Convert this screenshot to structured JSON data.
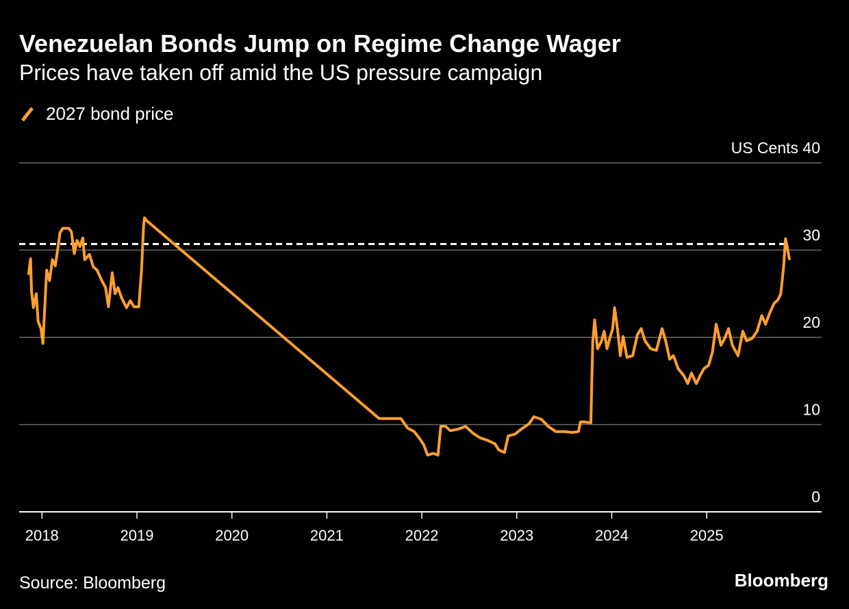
{
  "chart_data": {
    "type": "line",
    "title": "Venezuelan Bonds Jump on Regime Change Wager",
    "subtitle": "Prices have taken off amid the US pressure campaign",
    "source": "Source: Bloomberg",
    "credit": "Bloomberg",
    "xlim": [
      2017.76,
      2026.21
    ],
    "xticks": [
      2018,
      2019,
      2020,
      2021,
      2022,
      2023,
      2024,
      2025
    ],
    "ylim": [
      0,
      40
    ],
    "yticks": [
      0,
      10,
      20,
      30,
      {
        "value": 40,
        "label": "US Cents 40"
      }
    ],
    "grid": true,
    "reference_line": 30.7,
    "reference_color": "#ffffff",
    "x": [
      2017.86,
      2017.88,
      2017.89,
      2017.91,
      2017.94,
      2017.96,
      2017.99,
      2018.01,
      2018.04,
      2018.05,
      2018.08,
      2018.11,
      2018.14,
      2018.17,
      2018.19,
      2018.22,
      2018.28,
      2018.31,
      2018.34,
      2018.37,
      2018.4,
      2018.43,
      2018.45,
      2018.5,
      2018.54,
      2018.58,
      2018.63,
      2018.67,
      2018.7,
      2018.74,
      2018.77,
      2018.8,
      2018.84,
      2018.89,
      2018.93,
      2018.97,
      2019.02,
      2019.05,
      2019.07,
      2019.08,
      2019.1,
      2021.55,
      2021.78,
      2021.85,
      2021.92,
      2021.97,
      2022.02,
      2022.06,
      2022.12,
      2022.17,
      2022.2,
      2022.25,
      2022.3,
      2022.39,
      2022.46,
      2022.54,
      2022.61,
      2022.69,
      2022.77,
      2022.81,
      2022.87,
      2022.91,
      2022.98,
      2023.05,
      2023.13,
      2023.18,
      2023.26,
      2023.33,
      2023.41,
      2023.5,
      2023.59,
      2023.65,
      2023.67,
      2023.72,
      2023.78,
      2023.8,
      2023.82,
      2023.85,
      2023.89,
      2023.92,
      2023.95,
      2023.98,
      2024.01,
      2024.03,
      2024.06,
      2024.09,
      2024.12,
      2024.16,
      2024.22,
      2024.27,
      2024.31,
      2024.35,
      2024.41,
      2024.47,
      2024.53,
      2024.57,
      2024.61,
      2024.65,
      2024.7,
      2024.76,
      2024.8,
      2024.84,
      2024.89,
      2024.93,
      2024.97,
      2025.02,
      2025.06,
      2025.1,
      2025.15,
      2025.19,
      2025.23,
      2025.27,
      2025.33,
      2025.38,
      2025.42,
      2025.48,
      2025.53,
      2025.58,
      2025.62,
      2025.66,
      2025.71,
      2025.75,
      2025.78,
      2025.81,
      2025.83,
      2025.85,
      2025.87
    ],
    "series": [
      {
        "name": "2027 bond price",
        "color": "#ff9f2e",
        "values": [
          27.3,
          29,
          25.3,
          23.4,
          25,
          21.8,
          21,
          19.3,
          25.7,
          27.7,
          26.5,
          28.9,
          28.2,
          30.4,
          32,
          32.5,
          32.5,
          32.1,
          29.6,
          31.1,
          30.4,
          31.4,
          28.9,
          29.5,
          28.1,
          27.7,
          26.5,
          25.7,
          23.5,
          27.4,
          25,
          25.7,
          24.5,
          23.4,
          24.2,
          23.5,
          23.5,
          28,
          32.8,
          33.7,
          33.4,
          10.7,
          10.7,
          9.6,
          9.2,
          8.5,
          7.7,
          6.5,
          6.7,
          6.5,
          9.8,
          9.8,
          9.3,
          9.5,
          9.8,
          9,
          8.5,
          8.2,
          7.8,
          7.1,
          6.8,
          8.7,
          8.9,
          9.5,
          10.1,
          10.9,
          10.6,
          9.8,
          9.2,
          9.2,
          9.1,
          9.2,
          10.3,
          10.3,
          10.2,
          19.5,
          22,
          18.7,
          19.5,
          20.7,
          18.7,
          19.9,
          21,
          23.4,
          21,
          17.9,
          20.1,
          17.7,
          17.9,
          20.3,
          21,
          19.6,
          18.7,
          18.5,
          21,
          19.5,
          17.5,
          17.9,
          16.4,
          15.6,
          14.7,
          15.9,
          14.7,
          15.6,
          16.4,
          16.8,
          18.3,
          21.5,
          19.1,
          19.9,
          21,
          19.1,
          17.9,
          20.7,
          19.6,
          19.9,
          20.7,
          22.5,
          21.5,
          22.7,
          23.9,
          24.3,
          25,
          28.1,
          31.3,
          30.2,
          29
        ]
      }
    ]
  }
}
